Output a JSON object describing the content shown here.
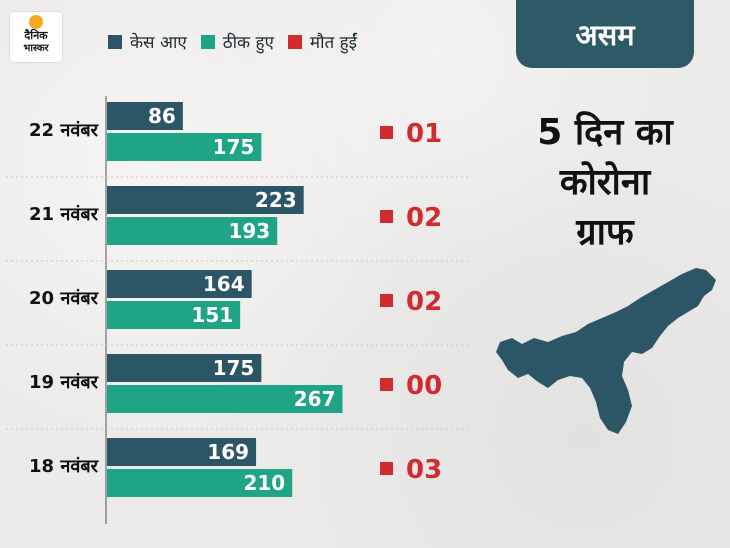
{
  "logo": {
    "line1": "दैनिक",
    "line2": "भास्कर"
  },
  "legend": [
    {
      "label": "केस आए",
      "color": "#2c5666"
    },
    {
      "label": "ठीक हुए",
      "color": "#1fa486"
    },
    {
      "label": "मौत हुईं",
      "color": "#d12a2f"
    }
  ],
  "panel": {
    "title": "असम",
    "heading_lines": [
      "5 दिन का",
      "कोरोना",
      "ग्राफ"
    ]
  },
  "chart_data": {
    "type": "bar",
    "orientation": "horizontal",
    "categories": [
      "22 नवंबर",
      "21 नवंबर",
      "20 नवंबर",
      "19 नवंबर",
      "18 नवंबर"
    ],
    "series": [
      {
        "name": "केस आए",
        "values": [
          86,
          223,
          164,
          175,
          169
        ],
        "labels": [
          "86",
          "223",
          "164",
          "175",
          "169"
        ],
        "color": "#2c5666"
      },
      {
        "name": "ठीक हुए",
        "values": [
          175,
          193,
          151,
          267,
          210
        ],
        "labels": [
          "175",
          "193",
          "151",
          "267",
          "210"
        ],
        "color": "#1fa486"
      },
      {
        "name": "मौत हुईं",
        "values": [
          1,
          2,
          2,
          0,
          3
        ],
        "labels": [
          "01",
          "02",
          "02",
          "00",
          "03"
        ],
        "color": "#d12a2f"
      }
    ],
    "xlim": [
      0,
      300
    ],
    "grid": false,
    "legend_position": "top"
  }
}
